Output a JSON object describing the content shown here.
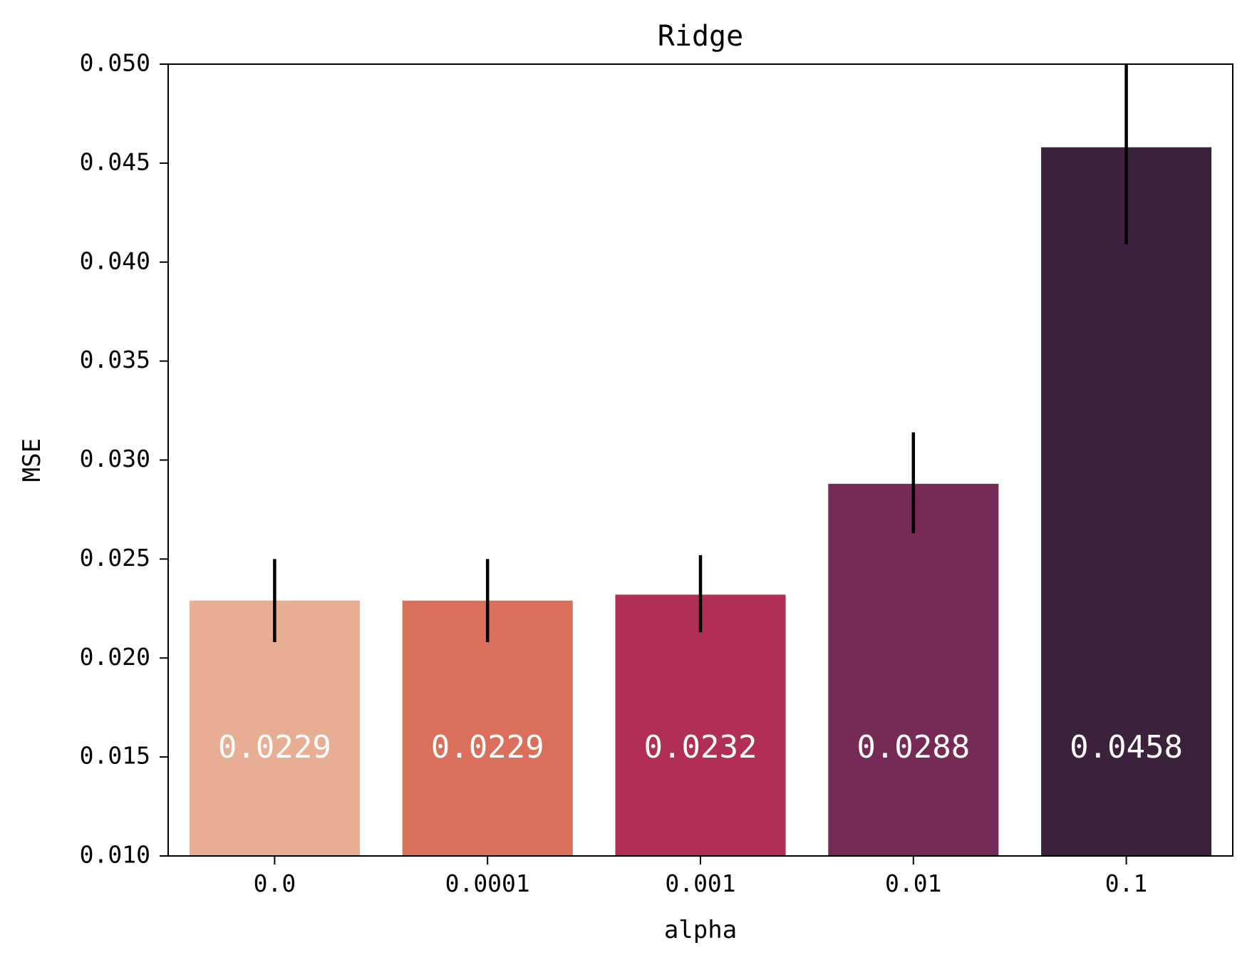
{
  "chart_data": {
    "type": "bar",
    "title": "Ridge",
    "xlabel": "alpha",
    "ylabel": "MSE",
    "categories": [
      "0.0",
      "0.0001",
      "0.001",
      "0.01",
      "0.1"
    ],
    "values": [
      0.0229,
      0.0229,
      0.0232,
      0.0288,
      0.0458
    ],
    "value_labels": [
      "0.0229",
      "0.0229",
      "0.0232",
      "0.0288",
      "0.0458"
    ],
    "error_low": [
      0.0208,
      0.0208,
      0.0213,
      0.0263,
      0.0409
    ],
    "error_high": [
      0.025,
      0.025,
      0.0252,
      0.0314,
      0.05
    ],
    "ylim": [
      0.01,
      0.05
    ],
    "yticks": [
      0.01,
      0.015,
      0.02,
      0.025,
      0.03,
      0.035,
      0.04,
      0.045,
      0.05
    ],
    "ytick_labels": [
      "0.010",
      "0.015",
      "0.020",
      "0.025",
      "0.030",
      "0.035",
      "0.040",
      "0.045",
      "0.050"
    ],
    "colors": [
      "#e8ae94",
      "#da6f5c",
      "#b12f55",
      "#762b56",
      "#3c213c"
    ],
    "error_color": "#000000",
    "grid": false,
    "legend": "none"
  }
}
